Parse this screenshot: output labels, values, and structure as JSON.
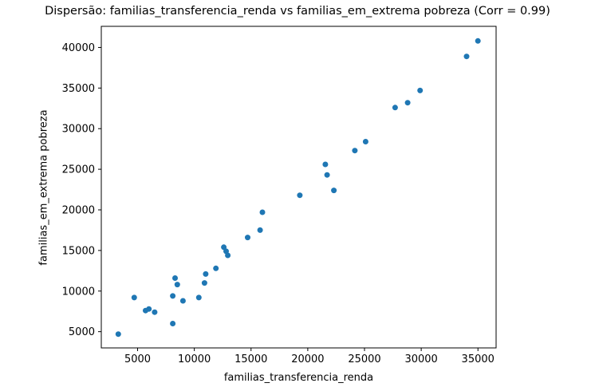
{
  "chart_data": {
    "type": "scatter",
    "title": "Dispersão: familias_transferencia_renda vs familias_em_extrema pobreza (Corr = 0.99)",
    "xlabel": "familias_transferencia_renda",
    "ylabel": "familias_em_extrema pobreza",
    "correlation": "0.99",
    "xlim": [
      1800,
      36600
    ],
    "ylim": [
      3000,
      42600
    ],
    "x_ticks": [
      5000,
      10000,
      15000,
      20000,
      25000,
      30000,
      35000
    ],
    "y_ticks": [
      5000,
      10000,
      15000,
      20000,
      25000,
      30000,
      35000,
      40000
    ],
    "grid": false,
    "legend": "none",
    "marker_color": "#1f77b4",
    "axis_color": "#000000",
    "points": [
      [
        3300,
        4700
      ],
      [
        4700,
        9200
      ],
      [
        5700,
        7600
      ],
      [
        6000,
        7800
      ],
      [
        6500,
        7400
      ],
      [
        8100,
        9400
      ],
      [
        8100,
        6000
      ],
      [
        8300,
        11600
      ],
      [
        8500,
        10800
      ],
      [
        9000,
        8800
      ],
      [
        10400,
        9200
      ],
      [
        10900,
        11000
      ],
      [
        11000,
        12100
      ],
      [
        11900,
        12800
      ],
      [
        12600,
        15400
      ],
      [
        12800,
        14900
      ],
      [
        12950,
        14400
      ],
      [
        14700,
        16600
      ],
      [
        15800,
        17500
      ],
      [
        16000,
        19700
      ],
      [
        19300,
        21800
      ],
      [
        21550,
        25600
      ],
      [
        21700,
        24300
      ],
      [
        22300,
        22400
      ],
      [
        24150,
        27300
      ],
      [
        25100,
        28400
      ],
      [
        27700,
        32600
      ],
      [
        28800,
        33200
      ],
      [
        29900,
        34700
      ],
      [
        34000,
        38900
      ],
      [
        35000,
        40800
      ]
    ]
  }
}
